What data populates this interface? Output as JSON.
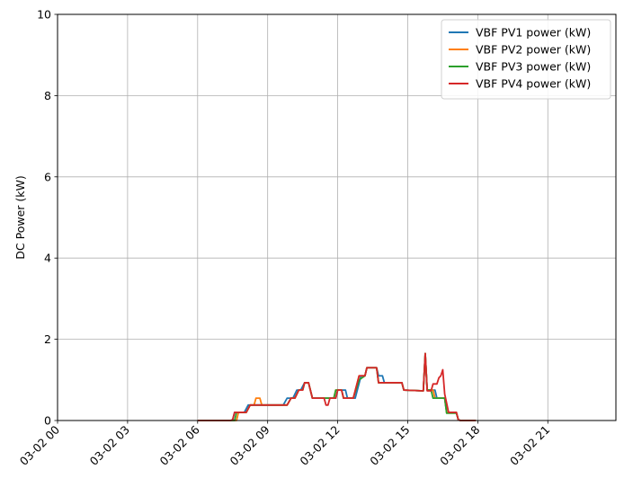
{
  "chart_data": {
    "type": "line",
    "title": "",
    "xlabel": "",
    "ylabel": "DC Power (kW)",
    "xlim": [
      "2024-03-02T00:00",
      "2024-03-02T23:55"
    ],
    "ylim": [
      0,
      10
    ],
    "grid": true,
    "legend_position": "top-right",
    "x_tick_labels": [
      "03-02 00",
      "03-02 03",
      "03-02 06",
      "03-02 09",
      "03-02 12",
      "03-02 15",
      "03-02 18",
      "03-02 21"
    ],
    "y_tick_labels": [
      "0",
      "2",
      "4",
      "6",
      "8",
      "10"
    ],
    "series": [
      {
        "name": "VBF PV1 power (kW)",
        "color": "#1f77b4",
        "points": [
          [
            "2024-03-02T06:00",
            0
          ],
          [
            "2024-03-02T07:25",
            0
          ],
          [
            "2024-03-02T07:30",
            0.02
          ],
          [
            "2024-03-02T07:35",
            0.2
          ],
          [
            "2024-03-02T08:00",
            0.2
          ],
          [
            "2024-03-02T08:10",
            0.38
          ],
          [
            "2024-03-02T09:40",
            0.38
          ],
          [
            "2024-03-02T09:50",
            0.55
          ],
          [
            "2024-03-02T10:05",
            0.55
          ],
          [
            "2024-03-02T10:15",
            0.75
          ],
          [
            "2024-03-02T10:25",
            0.75
          ],
          [
            "2024-03-02T10:35",
            0.93
          ],
          [
            "2024-03-02T10:45",
            0.93
          ],
          [
            "2024-03-02T10:55",
            0.55
          ],
          [
            "2024-03-02T11:55",
            0.55
          ],
          [
            "2024-03-02T12:00",
            0.75
          ],
          [
            "2024-03-02T12:20",
            0.75
          ],
          [
            "2024-03-02T12:25",
            0.55
          ],
          [
            "2024-03-02T12:45",
            0.55
          ],
          [
            "2024-03-02T13:00",
            1.1
          ],
          [
            "2024-03-02T13:10",
            1.1
          ],
          [
            "2024-03-02T13:15",
            1.3
          ],
          [
            "2024-03-02T13:40",
            1.3
          ],
          [
            "2024-03-02T13:45",
            1.1
          ],
          [
            "2024-03-02T13:55",
            1.1
          ],
          [
            "2024-03-02T14:00",
            0.93
          ],
          [
            "2024-03-02T14:45",
            0.93
          ],
          [
            "2024-03-02T14:50",
            0.75
          ],
          [
            "2024-03-02T15:40",
            0.73
          ],
          [
            "2024-03-02T15:45",
            1.65
          ],
          [
            "2024-03-02T15:50",
            0.75
          ],
          [
            "2024-03-02T16:10",
            0.75
          ],
          [
            "2024-03-02T16:15",
            0.55
          ],
          [
            "2024-03-02T16:35",
            0.55
          ],
          [
            "2024-03-02T16:40",
            0.2
          ],
          [
            "2024-03-02T17:05",
            0.2
          ],
          [
            "2024-03-02T17:10",
            0.02
          ],
          [
            "2024-03-02T17:15",
            0
          ],
          [
            "2024-03-02T17:55",
            0
          ]
        ]
      },
      {
        "name": "VBF PV2 power (kW)",
        "color": "#ff7f0e",
        "points": [
          [
            "2024-03-02T06:00",
            0
          ],
          [
            "2024-03-02T07:40",
            0
          ],
          [
            "2024-03-02T07:45",
            0.2
          ],
          [
            "2024-03-02T08:05",
            0.2
          ],
          [
            "2024-03-02T08:15",
            0.38
          ],
          [
            "2024-03-02T08:25",
            0.38
          ],
          [
            "2024-03-02T08:30",
            0.55
          ],
          [
            "2024-03-02T08:40",
            0.55
          ],
          [
            "2024-03-02T08:45",
            0.38
          ],
          [
            "2024-03-02T09:50",
            0.38
          ],
          [
            "2024-03-02T10:00",
            0.55
          ],
          [
            "2024-03-02T10:10",
            0.55
          ],
          [
            "2024-03-02T10:20",
            0.75
          ],
          [
            "2024-03-02T10:30",
            0.75
          ],
          [
            "2024-03-02T10:35",
            0.93
          ],
          [
            "2024-03-02T10:45",
            0.93
          ],
          [
            "2024-03-02T10:55",
            0.55
          ],
          [
            "2024-03-02T11:50",
            0.55
          ],
          [
            "2024-03-02T11:55",
            0.75
          ],
          [
            "2024-03-02T12:10",
            0.75
          ],
          [
            "2024-03-02T12:15",
            0.55
          ],
          [
            "2024-03-02T12:40",
            0.55
          ],
          [
            "2024-03-02T12:55",
            1.1
          ],
          [
            "2024-03-02T13:10",
            1.1
          ],
          [
            "2024-03-02T13:15",
            1.3
          ],
          [
            "2024-03-02T13:40",
            1.3
          ],
          [
            "2024-03-02T13:45",
            0.93
          ],
          [
            "2024-03-02T14:45",
            0.93
          ],
          [
            "2024-03-02T14:50",
            0.75
          ],
          [
            "2024-03-02T15:40",
            0.73
          ],
          [
            "2024-03-02T15:45",
            1.65
          ],
          [
            "2024-03-02T15:50",
            0.75
          ],
          [
            "2024-03-02T16:05",
            0.75
          ],
          [
            "2024-03-02T16:10",
            0.55
          ],
          [
            "2024-03-02T16:35",
            0.55
          ],
          [
            "2024-03-02T16:40",
            0.2
          ],
          [
            "2024-03-02T17:05",
            0.2
          ],
          [
            "2024-03-02T17:10",
            0.02
          ],
          [
            "2024-03-02T17:15",
            0
          ],
          [
            "2024-03-02T17:55",
            0
          ]
        ]
      },
      {
        "name": "VBF PV3 power (kW)",
        "color": "#2ca02c",
        "points": [
          [
            "2024-03-02T06:00",
            0
          ],
          [
            "2024-03-02T07:35",
            0
          ],
          [
            "2024-03-02T07:40",
            0.2
          ],
          [
            "2024-03-02T08:05",
            0.2
          ],
          [
            "2024-03-02T08:15",
            0.38
          ],
          [
            "2024-03-02T09:50",
            0.38
          ],
          [
            "2024-03-02T10:00",
            0.55
          ],
          [
            "2024-03-02T10:10",
            0.55
          ],
          [
            "2024-03-02T10:20",
            0.75
          ],
          [
            "2024-03-02T10:30",
            0.75
          ],
          [
            "2024-03-02T10:35",
            0.93
          ],
          [
            "2024-03-02T10:45",
            0.93
          ],
          [
            "2024-03-02T10:55",
            0.55
          ],
          [
            "2024-03-02T11:50",
            0.55
          ],
          [
            "2024-03-02T11:55",
            0.75
          ],
          [
            "2024-03-02T12:10",
            0.75
          ],
          [
            "2024-03-02T12:15",
            0.55
          ],
          [
            "2024-03-02T12:40",
            0.55
          ],
          [
            "2024-03-02T12:55",
            1.0
          ],
          [
            "2024-03-02T13:10",
            1.1
          ],
          [
            "2024-03-02T13:15",
            1.3
          ],
          [
            "2024-03-02T13:40",
            1.3
          ],
          [
            "2024-03-02T13:45",
            0.93
          ],
          [
            "2024-03-02T14:45",
            0.93
          ],
          [
            "2024-03-02T14:50",
            0.75
          ],
          [
            "2024-03-02T15:40",
            0.73
          ],
          [
            "2024-03-02T15:45",
            1.65
          ],
          [
            "2024-03-02T15:50",
            0.75
          ],
          [
            "2024-03-02T16:00",
            0.75
          ],
          [
            "2024-03-02T16:05",
            0.55
          ],
          [
            "2024-03-02T16:35",
            0.55
          ],
          [
            "2024-03-02T16:40",
            0.18
          ],
          [
            "2024-03-02T17:05",
            0.18
          ],
          [
            "2024-03-02T17:10",
            0.02
          ],
          [
            "2024-03-02T17:15",
            0
          ],
          [
            "2024-03-02T17:55",
            0
          ]
        ]
      },
      {
        "name": "VBF PV4 power (kW)",
        "color": "#d62728",
        "points": [
          [
            "2024-03-02T06:00",
            0
          ],
          [
            "2024-03-02T07:25",
            0
          ],
          [
            "2024-03-02T07:30",
            0.02
          ],
          [
            "2024-03-02T07:35",
            0.2
          ],
          [
            "2024-03-02T08:05",
            0.2
          ],
          [
            "2024-03-02T08:15",
            0.38
          ],
          [
            "2024-03-02T09:50",
            0.38
          ],
          [
            "2024-03-02T10:00",
            0.55
          ],
          [
            "2024-03-02T10:10",
            0.55
          ],
          [
            "2024-03-02T10:20",
            0.75
          ],
          [
            "2024-03-02T10:30",
            0.75
          ],
          [
            "2024-03-02T10:35",
            0.93
          ],
          [
            "2024-03-02T10:45",
            0.93
          ],
          [
            "2024-03-02T10:55",
            0.55
          ],
          [
            "2024-03-02T11:25",
            0.55
          ],
          [
            "2024-03-02T11:30",
            0.38
          ],
          [
            "2024-03-02T11:35",
            0.38
          ],
          [
            "2024-03-02T11:40",
            0.55
          ],
          [
            "2024-03-02T11:55",
            0.55
          ],
          [
            "2024-03-02T12:00",
            0.75
          ],
          [
            "2024-03-02T12:10",
            0.75
          ],
          [
            "2024-03-02T12:15",
            0.55
          ],
          [
            "2024-03-02T12:40",
            0.55
          ],
          [
            "2024-03-02T12:55",
            1.1
          ],
          [
            "2024-03-02T13:10",
            1.1
          ],
          [
            "2024-03-02T13:15",
            1.3
          ],
          [
            "2024-03-02T13:40",
            1.3
          ],
          [
            "2024-03-02T13:45",
            0.93
          ],
          [
            "2024-03-02T14:45",
            0.93
          ],
          [
            "2024-03-02T14:50",
            0.75
          ],
          [
            "2024-03-02T15:40",
            0.73
          ],
          [
            "2024-03-02T15:45",
            1.65
          ],
          [
            "2024-03-02T15:50",
            0.73
          ],
          [
            "2024-03-02T16:00",
            0.73
          ],
          [
            "2024-03-02T16:05",
            0.9
          ],
          [
            "2024-03-02T16:15",
            0.9
          ],
          [
            "2024-03-02T16:20",
            1.05
          ],
          [
            "2024-03-02T16:25",
            1.1
          ],
          [
            "2024-03-02T16:30",
            1.25
          ],
          [
            "2024-03-02T16:35",
            0.65
          ],
          [
            "2024-03-02T16:45",
            0.2
          ],
          [
            "2024-03-02T17:05",
            0.2
          ],
          [
            "2024-03-02T17:10",
            0.02
          ],
          [
            "2024-03-02T17:15",
            0
          ],
          [
            "2024-03-02T17:55",
            0
          ]
        ]
      }
    ]
  }
}
